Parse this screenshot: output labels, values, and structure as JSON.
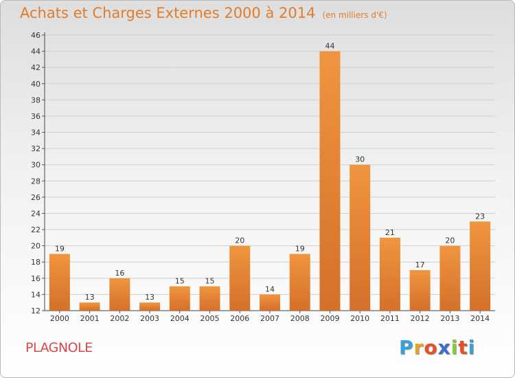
{
  "chart_data": {
    "type": "bar",
    "title": "Achats et Charges Externes 2000 à 2014",
    "subtitle": "(en milliers d'€)",
    "categories": [
      "2000",
      "2001",
      "2002",
      "2003",
      "2004",
      "2005",
      "2006",
      "2007",
      "2008",
      "2009",
      "2010",
      "2011",
      "2012",
      "2013",
      "2014"
    ],
    "values": [
      19,
      13,
      16,
      13,
      15,
      15,
      20,
      14,
      19,
      44,
      30,
      21,
      17,
      20,
      23
    ],
    "ylim": [
      12,
      46
    ],
    "yticks": [
      12,
      14,
      16,
      18,
      20,
      22,
      24,
      26,
      28,
      30,
      32,
      34,
      36,
      38,
      40,
      42,
      44,
      46
    ],
    "grid": true,
    "bar_color": "#f0953f",
    "bar_color_dark": "#d4702a"
  },
  "footer": {
    "commune": "PLAGNOLE",
    "logo_letters": [
      "P",
      "r",
      "o",
      "x",
      "i",
      "t",
      "i"
    ],
    "logo_colors": [
      "#3aa0dc",
      "#e8a22a",
      "#e8502a",
      "#3a6ec8",
      "#8cc83c",
      "#e8502a",
      "#3aa0dc"
    ]
  },
  "colors": {
    "title": "#e07c2c",
    "commune": "#d8484a"
  }
}
